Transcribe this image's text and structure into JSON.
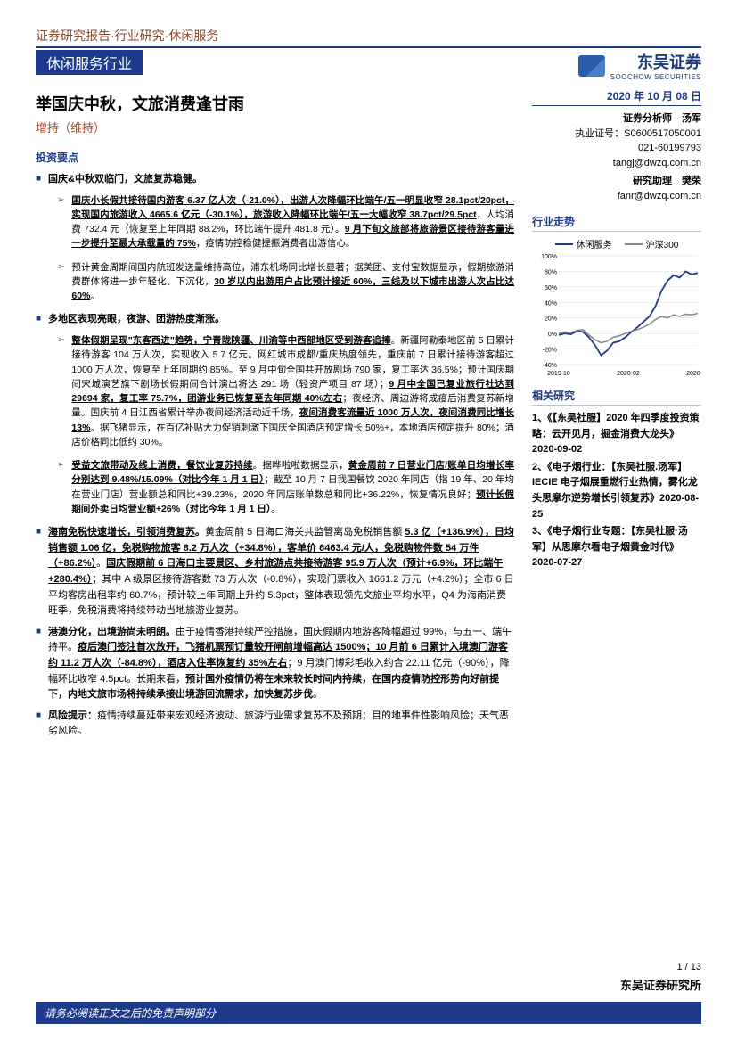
{
  "breadcrumb": "证券研究报告·行业研究·休闲服务",
  "industry": "休闲服务行业",
  "brand": {
    "cn": "东吴证券",
    "en": "SOOCHOW SECURITIES"
  },
  "title": "举国庆中秋，文旅消费逢甘雨",
  "subtitle": "增持（维持）",
  "date": "2020 年 10 月 08 日",
  "analysts": {
    "primary_role": "证券分析师　汤军",
    "primary_cert": "执业证号：S0600517050001",
    "primary_tel": "021-60199793",
    "primary_mail": "tangj@dwzq.com.cn",
    "assist_role": "研究助理　樊荣",
    "assist_mail": "fanr@dwzq.com.cn"
  },
  "key_label": "投资要点",
  "bullets": [
    {
      "h": "国庆&中秋双临门，文旅复苏稳健。",
      "subs": [
        "<u><b>国庆小长假共接待国内游客 6.37 亿人次（-21.0%），出游人次降幅环比端午/五一明显收窄 28.1pct/20pct，实现国内旅游收入 4665.6 亿元（-30.1%），旅游收入降幅环比端午/五一大幅收窄 38.7pct/29.5pct</b></u>，人均消费 732.4 元（恢复至上年同期 88.2%，环比端午提升 481.8 元）。<u><b>9 月下旬文旅部将旅游景区接待游客量进一步提升至最大承载量的 75%</b></u>，疫情防控稳健提振消费者出游信心。",
        "预计黄金周期间国内航班发送量维持高位，浦东机场同比增长显著；据美团、支付宝数据显示，假期旅游消费群体将进一步年轻化、下沉化，<u><b>30 岁以内出游用户占比预计接近 60%，三线及以下城市出游人次占比达 60%</b></u>。"
      ]
    },
    {
      "h": "多地区表现亮眼，夜游、团游热度渐涨。",
      "subs": [
        "<u><b>整体假期呈现\"东客西进\"趋势，宁青陇陕疆、川渝等中西部地区受到游客追捧</b></u>。新疆阿勒泰地区前 5 日累计接待游客 104 万人次，实现收入 5.7 亿元。网红城市成都/重庆热度领先，重庆前 7 日累计接待游客超过 1000 万人次，恢复至上年同期约 85%。至 9 月中旬全国共开放剧场 790 家，复工率达 36.5%；预计国庆期间宋城演艺旗下剧场长假期间合计演出将达 291 场（轻资产项目 87 场）；<u><b>9 月中全国已复业旅行社达到 29694 家，复工率 75.7%，团游业务已恢复至去年同期 40%左右</b></u>；夜经济、周边游将成疫后消费复苏新增量。国庆前 4 日江西省累计举办夜间经济活动近千场，<u><b>夜间消费客流量近 1000 万人次，夜间消费同比增长 13%</b></u>。据飞猪显示，在百亿补贴大力促销刺激下国庆全国酒店预定增长 50%+，本地酒店预定提升 80%；酒店价格同比低约 30%。",
        "<u><b>受益文旅带动及线上消费，餐饮业复苏持续</b></u>。据哗啦啦数据显示，<u><b>黄金周前 7 日营业门店/账单日均增长率分别达到 9.48%/15.09%（对比今年 1 月 1 日）</b></u>；截至 10 月 7 日我国餐饮 2020 年同店（指 19 年、20 年均在营业门店）营业额总和同比+39.23%，2020 年同店账单数总和同比+36.22%，恢复情况良好；<u><b>预计长假期间外卖日均营业额+26%（对比今年 1 月 1 日）</b></u>。"
      ]
    },
    {
      "h": "<u>海南免税快速增长，引领消费复苏</u>。<span class='txt-weak'>黄金周前 5 日海口海关共监管离岛免税销售额 <u><b>5.3 亿（+136.9%），日均销售额 1.06 亿，免税购物旅客 8.2 万人次（+34.8%），客单价 6463.4 元/人，免税购物件数 54 万件（+86.2%）</b></u>。<u><b>国庆假期前 6 日海口主要景区、乡村旅游点共接待游客 95.9 万人次（预计+6.9%，环比端午+280.4%）</b></u>；其中 A 级景区接待游客数 73 万人次（-0.8%），实现门票收入 1661.2 万元（+4.2%）；全市 6 日平均客房出租率约 60.7%，预计较上年同期上升约 5.3pct，整体表现领先文旅业平均水平，Q4 为海南消费旺季，免税消费将持续带动当地旅游业复苏。</span>",
      "subs": []
    },
    {
      "h": "<u>港澳分化，出境游尚未明朗</u>。<span class='txt-weak'>由于疫情香港持续严控措施，国庆假期内地游客降幅超过 99%，与五一、端午持平。<u><b>疫后澳门签注首次放开，飞猪机票预订量较开闸前增幅高达 1500%；10 月前 6 日累计入境澳门游客约 11.2 万人次（-84.8%），酒店入住率恢复约 35%左右</b></u>；9 月澳门博彩毛收入约合 22.11 亿元（-90%），降幅环比收窄 4.5pct。长期来看，<b>预计国外疫情仍将在未来较长时间内持续，在国内疫情防控形势向好前提下，内地文旅市场将持续承接出境游回流需求，加快复苏步伐</b>。</span>",
      "subs": []
    },
    {
      "h": "风险提示：<span class='txt-weak'>疫情持续蔓延带来宏观经济波动、旅游行业需求复苏不及预期；目的地事件性影响风险；天气恶劣风险。</span>",
      "subs": []
    }
  ],
  "chart": {
    "title": "行业走势",
    "legend": [
      {
        "label": "休闲服务",
        "color": "#1e3a8a"
      },
      {
        "label": "沪深300",
        "color": "#888888"
      }
    ],
    "x_labels": [
      "2019-10",
      "2020-02",
      "2020-06"
    ],
    "y_ticks": [
      "-40%",
      "-20%",
      "0%",
      "20%",
      "40%",
      "60%",
      "80%",
      "100%"
    ],
    "y_min": -40,
    "y_max": 100,
    "series": [
      {
        "color": "#1e3a8a",
        "width": 1.8,
        "points": [
          -2,
          0,
          -1,
          3,
          2,
          -5,
          -15,
          -28,
          -22,
          -12,
          -10,
          -5,
          2,
          8,
          15,
          22,
          35,
          55,
          68,
          75,
          72,
          80,
          76,
          78
        ]
      },
      {
        "color": "#888888",
        "width": 1.5,
        "points": [
          0,
          2,
          1,
          4,
          5,
          -2,
          -8,
          -12,
          -10,
          -5,
          -3,
          0,
          3,
          5,
          8,
          12,
          18,
          22,
          20,
          24,
          22,
          25,
          24,
          26
        ]
      }
    ]
  },
  "related_title": "相关研究",
  "related": [
    "1、《【东吴社服】2020 年四季度投资策略：云开见月，掘金消费大龙头》2020-09-02",
    "2、《电子烟行业：【东吴社服.汤军】IECIE 电子烟展重燃行业热情，雾化龙头思摩尔逆势增长引领复苏》2020-08-25",
    "3、《电子烟行业专题：【东吴社服·汤军】从思摩尔看电子烟黄金时代》2020-07-27"
  ],
  "page_num": "1 / 13",
  "foot_org": "东吴证券研究所",
  "disclaimer": "请务必阅读正文之后的免责声明部分"
}
